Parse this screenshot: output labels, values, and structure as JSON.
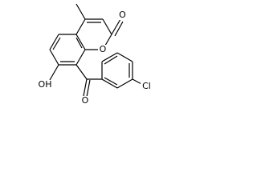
{
  "nodes": [
    {
      "label": "O"
    },
    {
      "label": "O"
    },
    {
      "label": "OH"
    },
    {
      "label": "O"
    },
    {
      "label": "Cl"
    }
  ]
}
